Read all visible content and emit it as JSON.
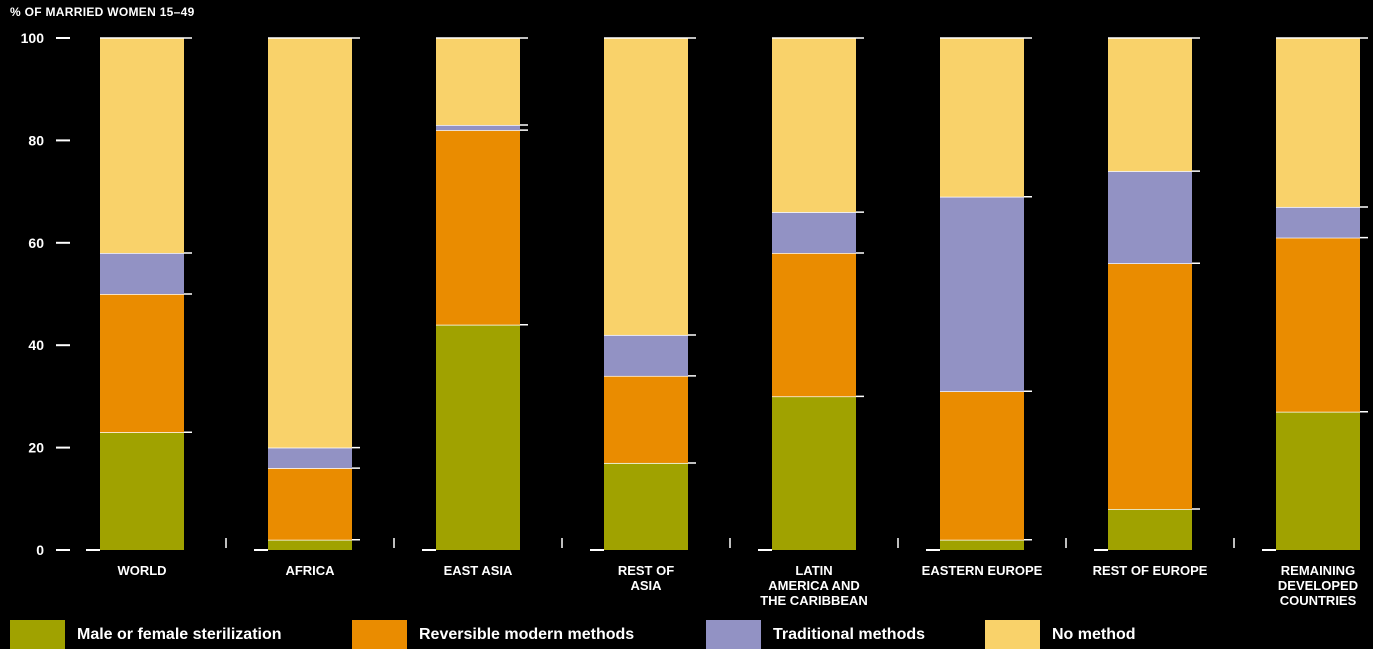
{
  "chart_data": {
    "type": "bar",
    "stacked": true,
    "ylabel": "% OF MARRIED WOMEN 15–49",
    "ylim": [
      0,
      100
    ],
    "yticks": [
      "0",
      "20",
      "40",
      "60",
      "80",
      "100"
    ],
    "categories": [
      [
        "WORLD"
      ],
      [
        "AFRICA"
      ],
      [
        "EAST ASIA"
      ],
      [
        "REST OF",
        "ASIA"
      ],
      [
        "LATIN",
        "AMERICA AND",
        "THE CARIBBEAN"
      ],
      [
        "EASTERN EUROPE"
      ],
      [
        "REST OF EUROPE"
      ],
      [
        "REMAINING",
        "DEVELOPED",
        "COUNTRIES"
      ]
    ],
    "series": [
      {
        "name": "Male or female sterilization",
        "color": "#a0a200",
        "values": [
          23,
          2,
          44,
          17,
          30,
          2,
          8,
          27
        ]
      },
      {
        "name": "Reversible modern methods",
        "color": "#ea8c00",
        "values": [
          27,
          14,
          38,
          17,
          28,
          29,
          48,
          34
        ]
      },
      {
        "name": "Traditional methods",
        "color": "#9292c4",
        "values": [
          8,
          4,
          1,
          8,
          8,
          38,
          18,
          6
        ]
      },
      {
        "name": "No method",
        "color": "#f9d26a",
        "values": [
          42,
          80,
          17,
          58,
          34,
          31,
          26,
          33
        ]
      }
    ],
    "grid": false,
    "legend_position": "bottom"
  }
}
